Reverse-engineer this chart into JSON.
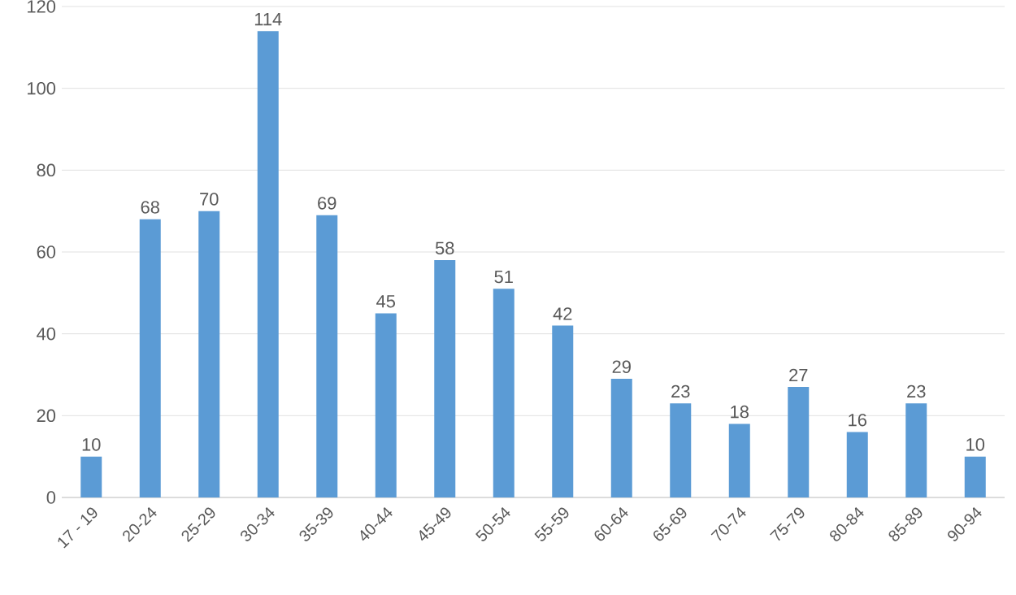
{
  "chart_data": {
    "type": "bar",
    "categories": [
      "17 - 19",
      "20-24",
      "25-29",
      "30-34",
      "35-39",
      "40-44",
      "45-49",
      "50-54",
      "55-59",
      "60-64",
      "65-69",
      "70-74",
      "75-79",
      "80-84",
      "85-89",
      "90-94"
    ],
    "values": [
      10,
      68,
      70,
      114,
      69,
      45,
      58,
      51,
      42,
      29,
      23,
      18,
      27,
      16,
      23,
      10
    ],
    "color": "#5b9bd5",
    "ylim": [
      0,
      120
    ],
    "yticks": [
      0,
      20,
      40,
      60,
      80,
      100,
      120
    ],
    "grid": "y",
    "data_labels": true
  }
}
